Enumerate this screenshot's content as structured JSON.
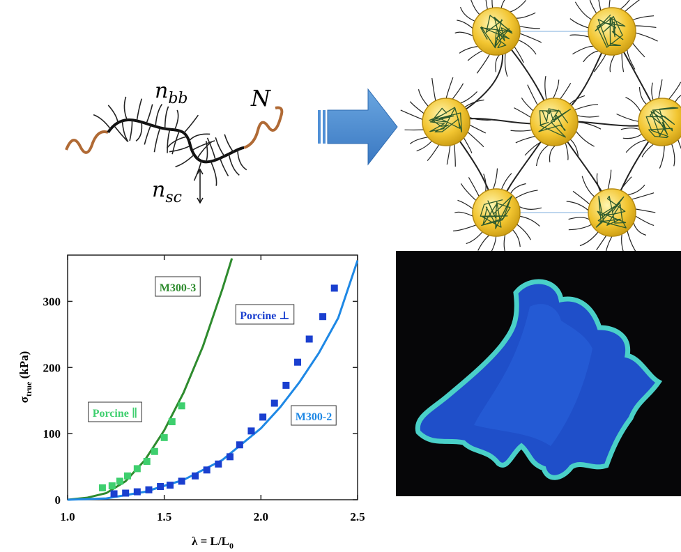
{
  "diagram": {
    "backbone_label": {
      "base": "n",
      "sub": "bb"
    },
    "end_label": "N",
    "side_label": {
      "base": "n",
      "sub": "sc"
    }
  },
  "chart_data": {
    "type": "scatter",
    "x_label": {
      "base": "λ =  L/L",
      "sub": "0"
    },
    "y_label": {
      "base": "σ",
      "sub": "true",
      "rest": " (kPa)"
    },
    "xlim": [
      1,
      2.5
    ],
    "ylim": [
      0,
      370
    ],
    "xticks": [
      {
        "value": 1,
        "label": "1.0"
      },
      1.5,
      {
        "value": 2,
        "label": "2.0"
      },
      2.5
    ],
    "yticks": [
      0,
      100,
      200,
      300
    ],
    "series": [
      {
        "name": "M300-3",
        "color": "#2e8b2e",
        "style": "line",
        "x": [
          1,
          1.1,
          1.2,
          1.3,
          1.4,
          1.5,
          1.6,
          1.7,
          1.8,
          1.85
        ],
        "values": [
          0,
          3,
          10,
          28,
          60,
          105,
          162,
          232,
          318,
          365
        ]
      },
      {
        "name": "Porcine ∥",
        "color": "#3ecf6e",
        "style": "markers",
        "x": [
          1.18,
          1.23,
          1.27,
          1.31,
          1.36,
          1.41,
          1.45,
          1.5,
          1.54,
          1.59
        ],
        "values": [
          18,
          21,
          28,
          36,
          47,
          58,
          73,
          94,
          118,
          142
        ]
      },
      {
        "name": "M300-2",
        "color": "#1e88e5",
        "style": "line",
        "x": [
          1,
          1.2,
          1.4,
          1.6,
          1.8,
          2.0,
          2.1,
          2.2,
          2.3,
          2.4,
          2.5
        ],
        "values": [
          0,
          2,
          12,
          30,
          60,
          108,
          140,
          178,
          222,
          275,
          362
        ]
      },
      {
        "name": "Porcine ⊥",
        "color": "#1a3fcf",
        "style": "markers",
        "x": [
          1.24,
          1.3,
          1.36,
          1.42,
          1.48,
          1.53,
          1.59,
          1.66,
          1.72,
          1.78,
          1.84,
          1.89,
          1.95,
          2.01,
          2.07,
          2.13,
          2.19,
          2.25,
          2.32,
          2.38
        ],
        "values": [
          9,
          10,
          12,
          15,
          20,
          22,
          28,
          36,
          45,
          54,
          65,
          83,
          104,
          125,
          146,
          173,
          208,
          243,
          277,
          320
        ]
      }
    ]
  }
}
